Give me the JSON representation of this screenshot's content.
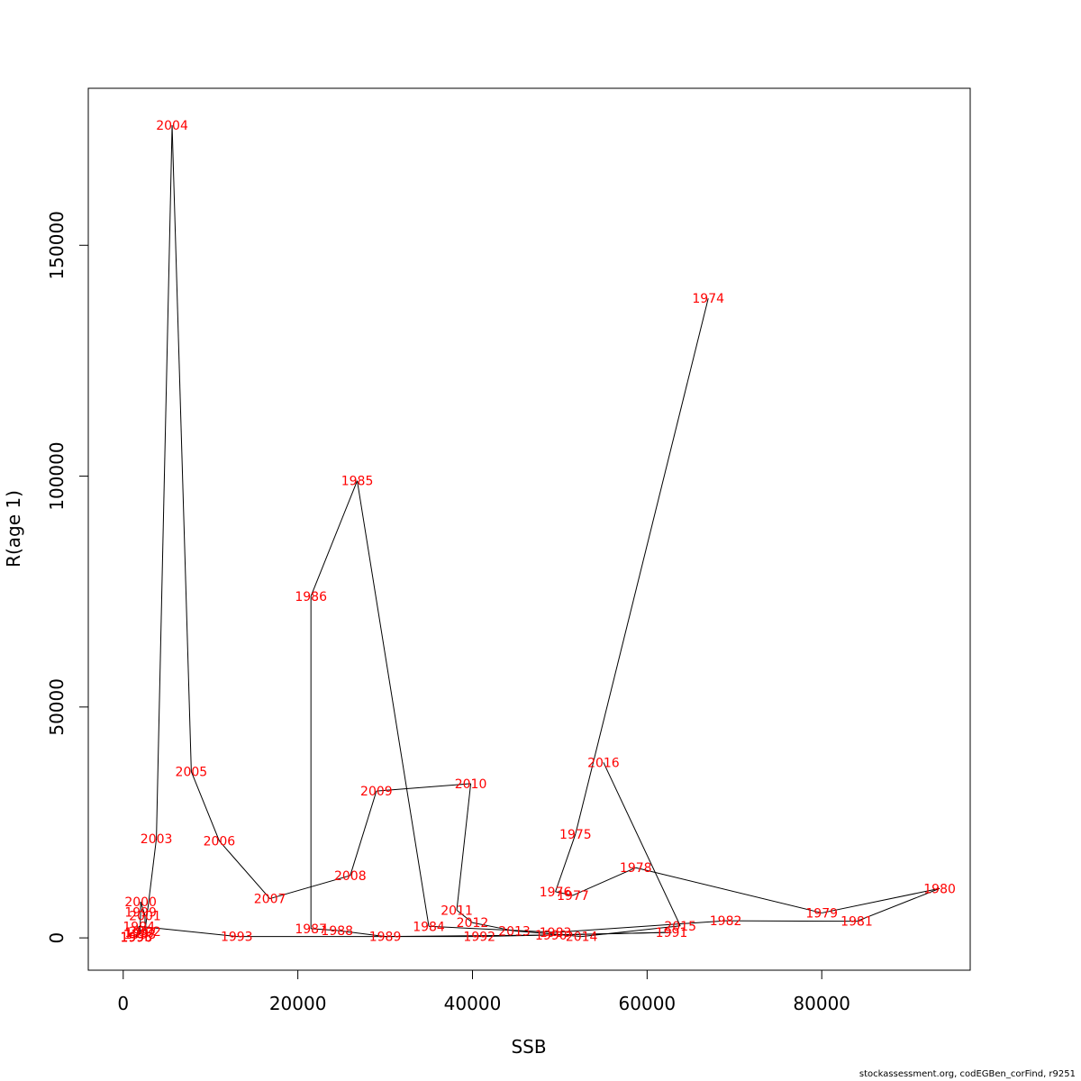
{
  "chart_data": {
    "type": "line",
    "title": "",
    "xlabel": "SSB",
    "ylabel": "R(age 1)",
    "xlim": [
      -4000,
      97000
    ],
    "ylim": [
      -7000,
      184000
    ],
    "xticks": [
      0,
      20000,
      40000,
      60000,
      80000
    ],
    "yticks": [
      0,
      50000,
      100000,
      150000
    ],
    "point_label_color": "#ff0000",
    "line_color": "#000000",
    "grid": false,
    "points": [
      {
        "year": "1974",
        "x": 67000,
        "y": 138500
      },
      {
        "year": "1975",
        "x": 51800,
        "y": 22500
      },
      {
        "year": "1976",
        "x": 49500,
        "y": 10000
      },
      {
        "year": "1977",
        "x": 51500,
        "y": 9200
      },
      {
        "year": "1978",
        "x": 58700,
        "y": 15200
      },
      {
        "year": "1979",
        "x": 80000,
        "y": 5400
      },
      {
        "year": "1980",
        "x": 93500,
        "y": 10700
      },
      {
        "year": "1981",
        "x": 84000,
        "y": 3600
      },
      {
        "year": "1982",
        "x": 69000,
        "y": 3700
      },
      {
        "year": "1983",
        "x": 49500,
        "y": 1200
      },
      {
        "year": "1984",
        "x": 35000,
        "y": 2500
      },
      {
        "year": "1985",
        "x": 26800,
        "y": 99000
      },
      {
        "year": "1986",
        "x": 21500,
        "y": 74000
      },
      {
        "year": "1987",
        "x": 21500,
        "y": 2000
      },
      {
        "year": "1988",
        "x": 24500,
        "y": 1600
      },
      {
        "year": "1989",
        "x": 30000,
        "y": 300
      },
      {
        "year": "1990",
        "x": 49000,
        "y": 600
      },
      {
        "year": "1991",
        "x": 62800,
        "y": 1200
      },
      {
        "year": "1992",
        "x": 40800,
        "y": 300
      },
      {
        "year": "1993",
        "x": 13000,
        "y": 300
      },
      {
        "year": "1994",
        "x": 1800,
        "y": 2500
      },
      {
        "year": "1995",
        "x": 1500,
        "y": 200
      },
      {
        "year": "1996",
        "x": 1500,
        "y": 100
      },
      {
        "year": "1997",
        "x": 2000,
        "y": 1200
      },
      {
        "year": "1998",
        "x": 1900,
        "y": 800
      },
      {
        "year": "1999",
        "x": 2000,
        "y": 5600
      },
      {
        "year": "2000",
        "x": 2000,
        "y": 7800
      },
      {
        "year": "2001",
        "x": 2500,
        "y": 4800
      },
      {
        "year": "2002",
        "x": 2500,
        "y": 1400
      },
      {
        "year": "2003",
        "x": 3800,
        "y": 21500
      },
      {
        "year": "2004",
        "x": 5600,
        "y": 176000
      },
      {
        "year": "2005",
        "x": 7800,
        "y": 36000
      },
      {
        "year": "2006",
        "x": 11000,
        "y": 21000
      },
      {
        "year": "2007",
        "x": 16800,
        "y": 8500
      },
      {
        "year": "2008",
        "x": 26000,
        "y": 13500
      },
      {
        "year": "2009",
        "x": 29000,
        "y": 31800
      },
      {
        "year": "2010",
        "x": 39800,
        "y": 33400
      },
      {
        "year": "2011",
        "x": 38200,
        "y": 6000
      },
      {
        "year": "2012",
        "x": 40000,
        "y": 3300
      },
      {
        "year": "2013",
        "x": 44800,
        "y": 1500
      },
      {
        "year": "2014",
        "x": 52500,
        "y": 300
      },
      {
        "year": "2015",
        "x": 63800,
        "y": 2600
      },
      {
        "year": "2016",
        "x": 55000,
        "y": 38000
      }
    ]
  },
  "footer": {
    "caption": "stockassessment.org, codEGBen_corFind, r9251"
  }
}
